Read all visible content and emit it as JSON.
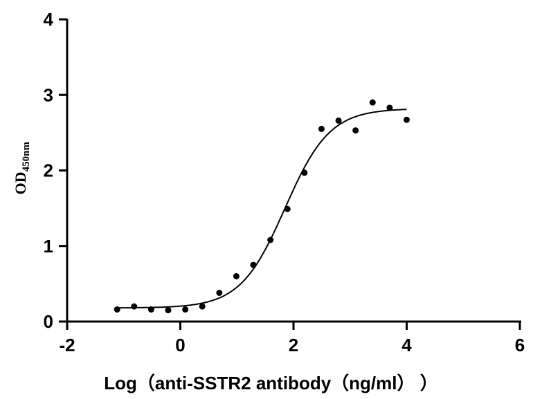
{
  "chart_data": {
    "type": "scatter",
    "title": "",
    "xlabel": "Log（anti-SSTR2 antibody（ng/ml） ）",
    "ylabel_main": "OD",
    "ylabel_sub": "450nm",
    "xlim": [
      -2,
      6
    ],
    "ylim": [
      0,
      4
    ],
    "xticks": [
      "-2",
      "0",
      "2",
      "4",
      "6"
    ],
    "yticks": [
      "0",
      "1",
      "2",
      "3",
      "4"
    ],
    "grid": false,
    "points": {
      "x": [
        -1.117,
        -0.816,
        -0.515,
        -0.214,
        0.087,
        0.388,
        0.689,
        0.99,
        1.291,
        1.592,
        1.893,
        2.194,
        2.495,
        2.796,
        3.097,
        3.398,
        3.699,
        4.0
      ],
      "y": [
        0.16,
        0.2,
        0.16,
        0.15,
        0.16,
        0.2,
        0.38,
        0.6,
        0.75,
        1.08,
        1.49,
        1.97,
        2.55,
        2.66,
        2.53,
        2.9,
        2.83,
        2.67
      ]
    },
    "fit_curve": {
      "model": "4PL",
      "bottom": 0.18,
      "top": 2.82,
      "logEC50": 1.85,
      "hill": 1.1,
      "x_range": [
        -1.117,
        4.0
      ]
    },
    "colors": {
      "marks": "#000000"
    }
  }
}
